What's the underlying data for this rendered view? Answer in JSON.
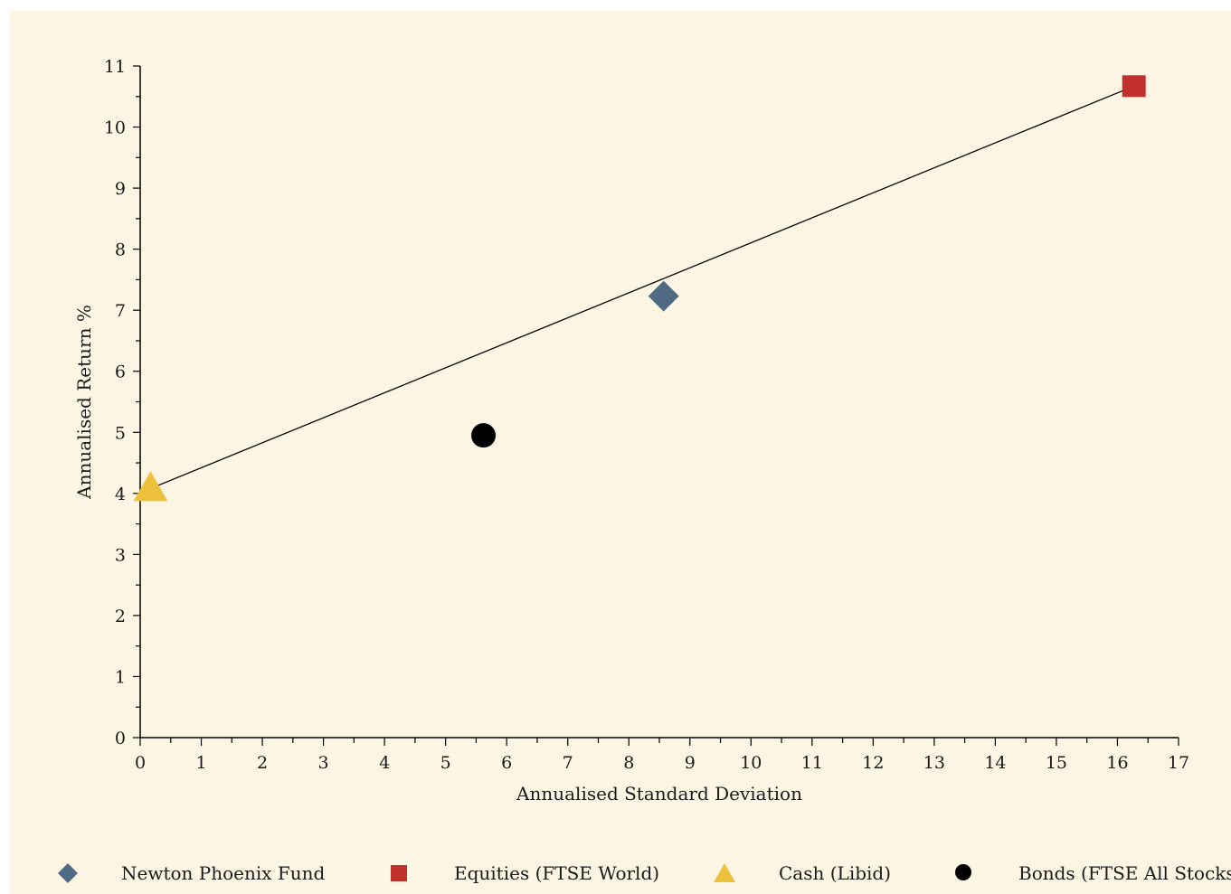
{
  "chart_data": {
    "type": "scatter",
    "xlabel": "Annualised Standard Deviation",
    "ylabel": "Annualised Return %",
    "xlim": [
      0,
      17
    ],
    "ylim": [
      0,
      11
    ],
    "x_ticks": [
      0,
      1,
      2,
      3,
      4,
      5,
      6,
      7,
      8,
      9,
      10,
      11,
      12,
      13,
      14,
      15,
      16,
      17
    ],
    "y_ticks": [
      0,
      1,
      2,
      3,
      4,
      5,
      6,
      7,
      8,
      9,
      10,
      11
    ],
    "series": [
      {
        "name": "Newton Phoenix Fund",
        "marker": "diamond",
        "color": "#4f6a82",
        "points": [
          {
            "x": 8.57,
            "y": 7.23
          }
        ]
      },
      {
        "name": "Equities (FTSE World)",
        "marker": "square",
        "color": "#c0312b",
        "points": [
          {
            "x": 16.27,
            "y": 10.67
          }
        ]
      },
      {
        "name": "Cash (Libid)",
        "marker": "triangle",
        "color": "#ecc23c",
        "points": [
          {
            "x": 0.17,
            "y": 4.08
          }
        ]
      },
      {
        "name": "Bonds (FTSE All Stocks)",
        "marker": "circle",
        "color": "#000000",
        "points": [
          {
            "x": 5.62,
            "y": 4.95
          }
        ]
      }
    ],
    "line": {
      "from": {
        "x": 0.17,
        "y": 4.08
      },
      "to": {
        "x": 16.27,
        "y": 10.67
      },
      "color": "#000000"
    },
    "legend_position": "bottom",
    "grid": false
  }
}
